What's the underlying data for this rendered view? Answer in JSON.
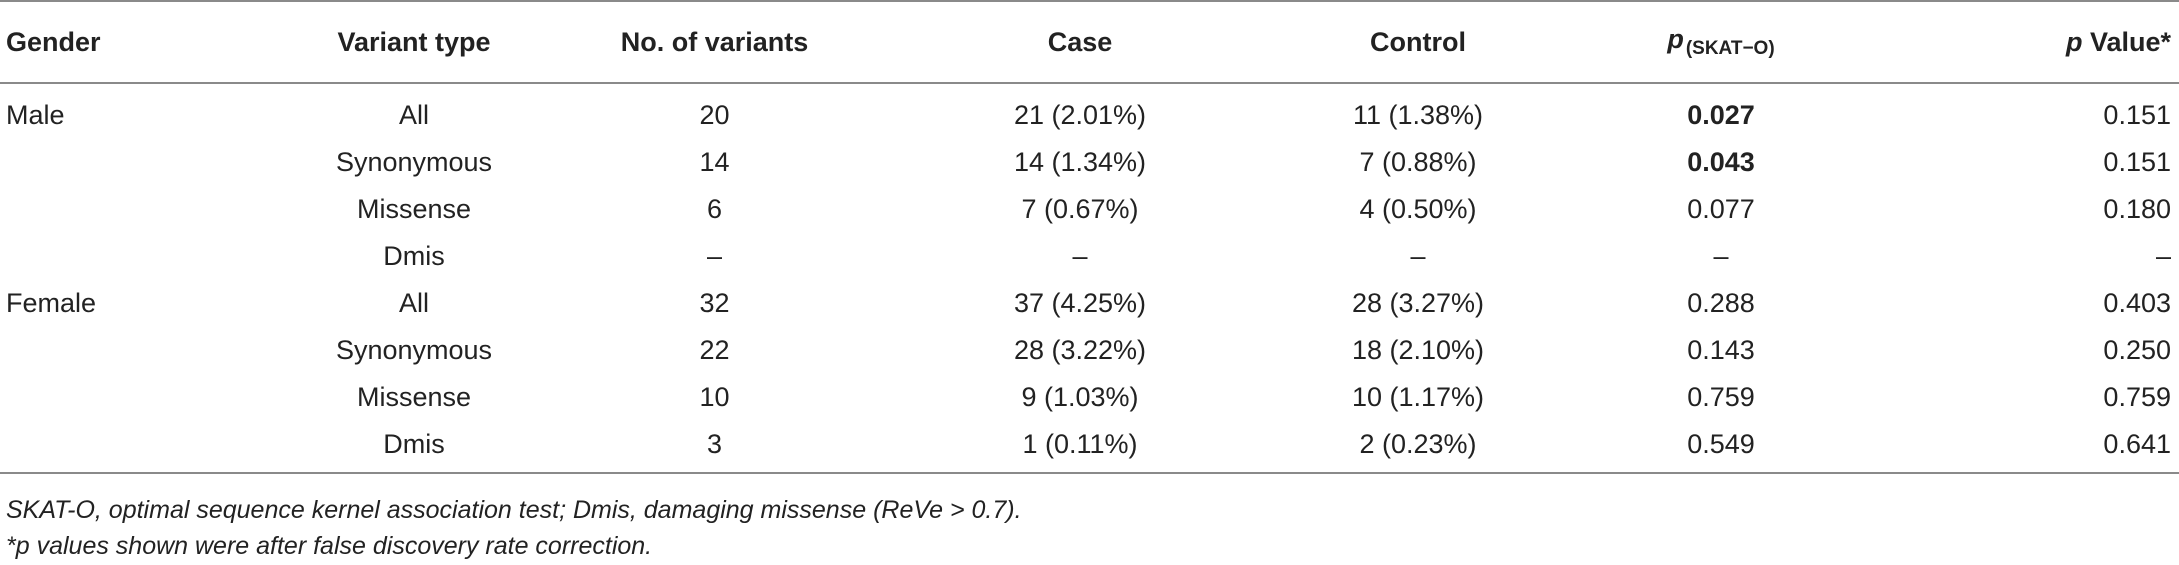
{
  "table": {
    "headers": {
      "gender": "Gender",
      "variant_type": "Variant type",
      "no_variants": "No. of variants",
      "case": "Case",
      "control": "Control",
      "p_skat_symbol": "p",
      "p_skat_sub": "(SKAT−O)",
      "p_value_symbol": "p",
      "p_value_rest": " Value*"
    },
    "rows": [
      {
        "gender": "Male",
        "variant_type": "All",
        "no_variants": "20",
        "case": "21 (2.01%)",
        "control": "11 (1.38%)",
        "p_skat": "0.027",
        "p_value": "0.151"
      },
      {
        "gender": "",
        "variant_type": "Synonymous",
        "no_variants": "14",
        "case": "14 (1.34%)",
        "control": "7 (0.88%)",
        "p_skat": "0.043",
        "p_value": "0.151"
      },
      {
        "gender": "",
        "variant_type": "Missense",
        "no_variants": "6",
        "case": "7 (0.67%)",
        "control": "4 (0.50%)",
        "p_skat": "0.077",
        "p_value": "0.180"
      },
      {
        "gender": "",
        "variant_type": "Dmis",
        "no_variants": "–",
        "case": "–",
        "control": "–",
        "p_skat": "–",
        "p_value": "–"
      },
      {
        "gender": "Female",
        "variant_type": "All",
        "no_variants": "32",
        "case": "37 (4.25%)",
        "control": "28 (3.27%)",
        "p_skat": "0.288",
        "p_value": "0.403"
      },
      {
        "gender": "",
        "variant_type": "Synonymous",
        "no_variants": "22",
        "case": "28 (3.22%)",
        "control": "18 (2.10%)",
        "p_skat": "0.143",
        "p_value": "0.250"
      },
      {
        "gender": "",
        "variant_type": "Missense",
        "no_variants": "10",
        "case": "9 (1.03%)",
        "control": "10 (1.17%)",
        "p_skat": "0.759",
        "p_value": "0.759"
      },
      {
        "gender": "",
        "variant_type": "Dmis",
        "no_variants": "3",
        "case": "1 (0.11%)",
        "control": "2 (0.23%)",
        "p_skat": "0.549",
        "p_value": "0.641"
      }
    ]
  },
  "footnotes": [
    "SKAT-O, optimal sequence kernel association test; Dmis, damaging missense (ReVe > 0.7).",
    "*p values shown were after false discovery rate correction."
  ]
}
